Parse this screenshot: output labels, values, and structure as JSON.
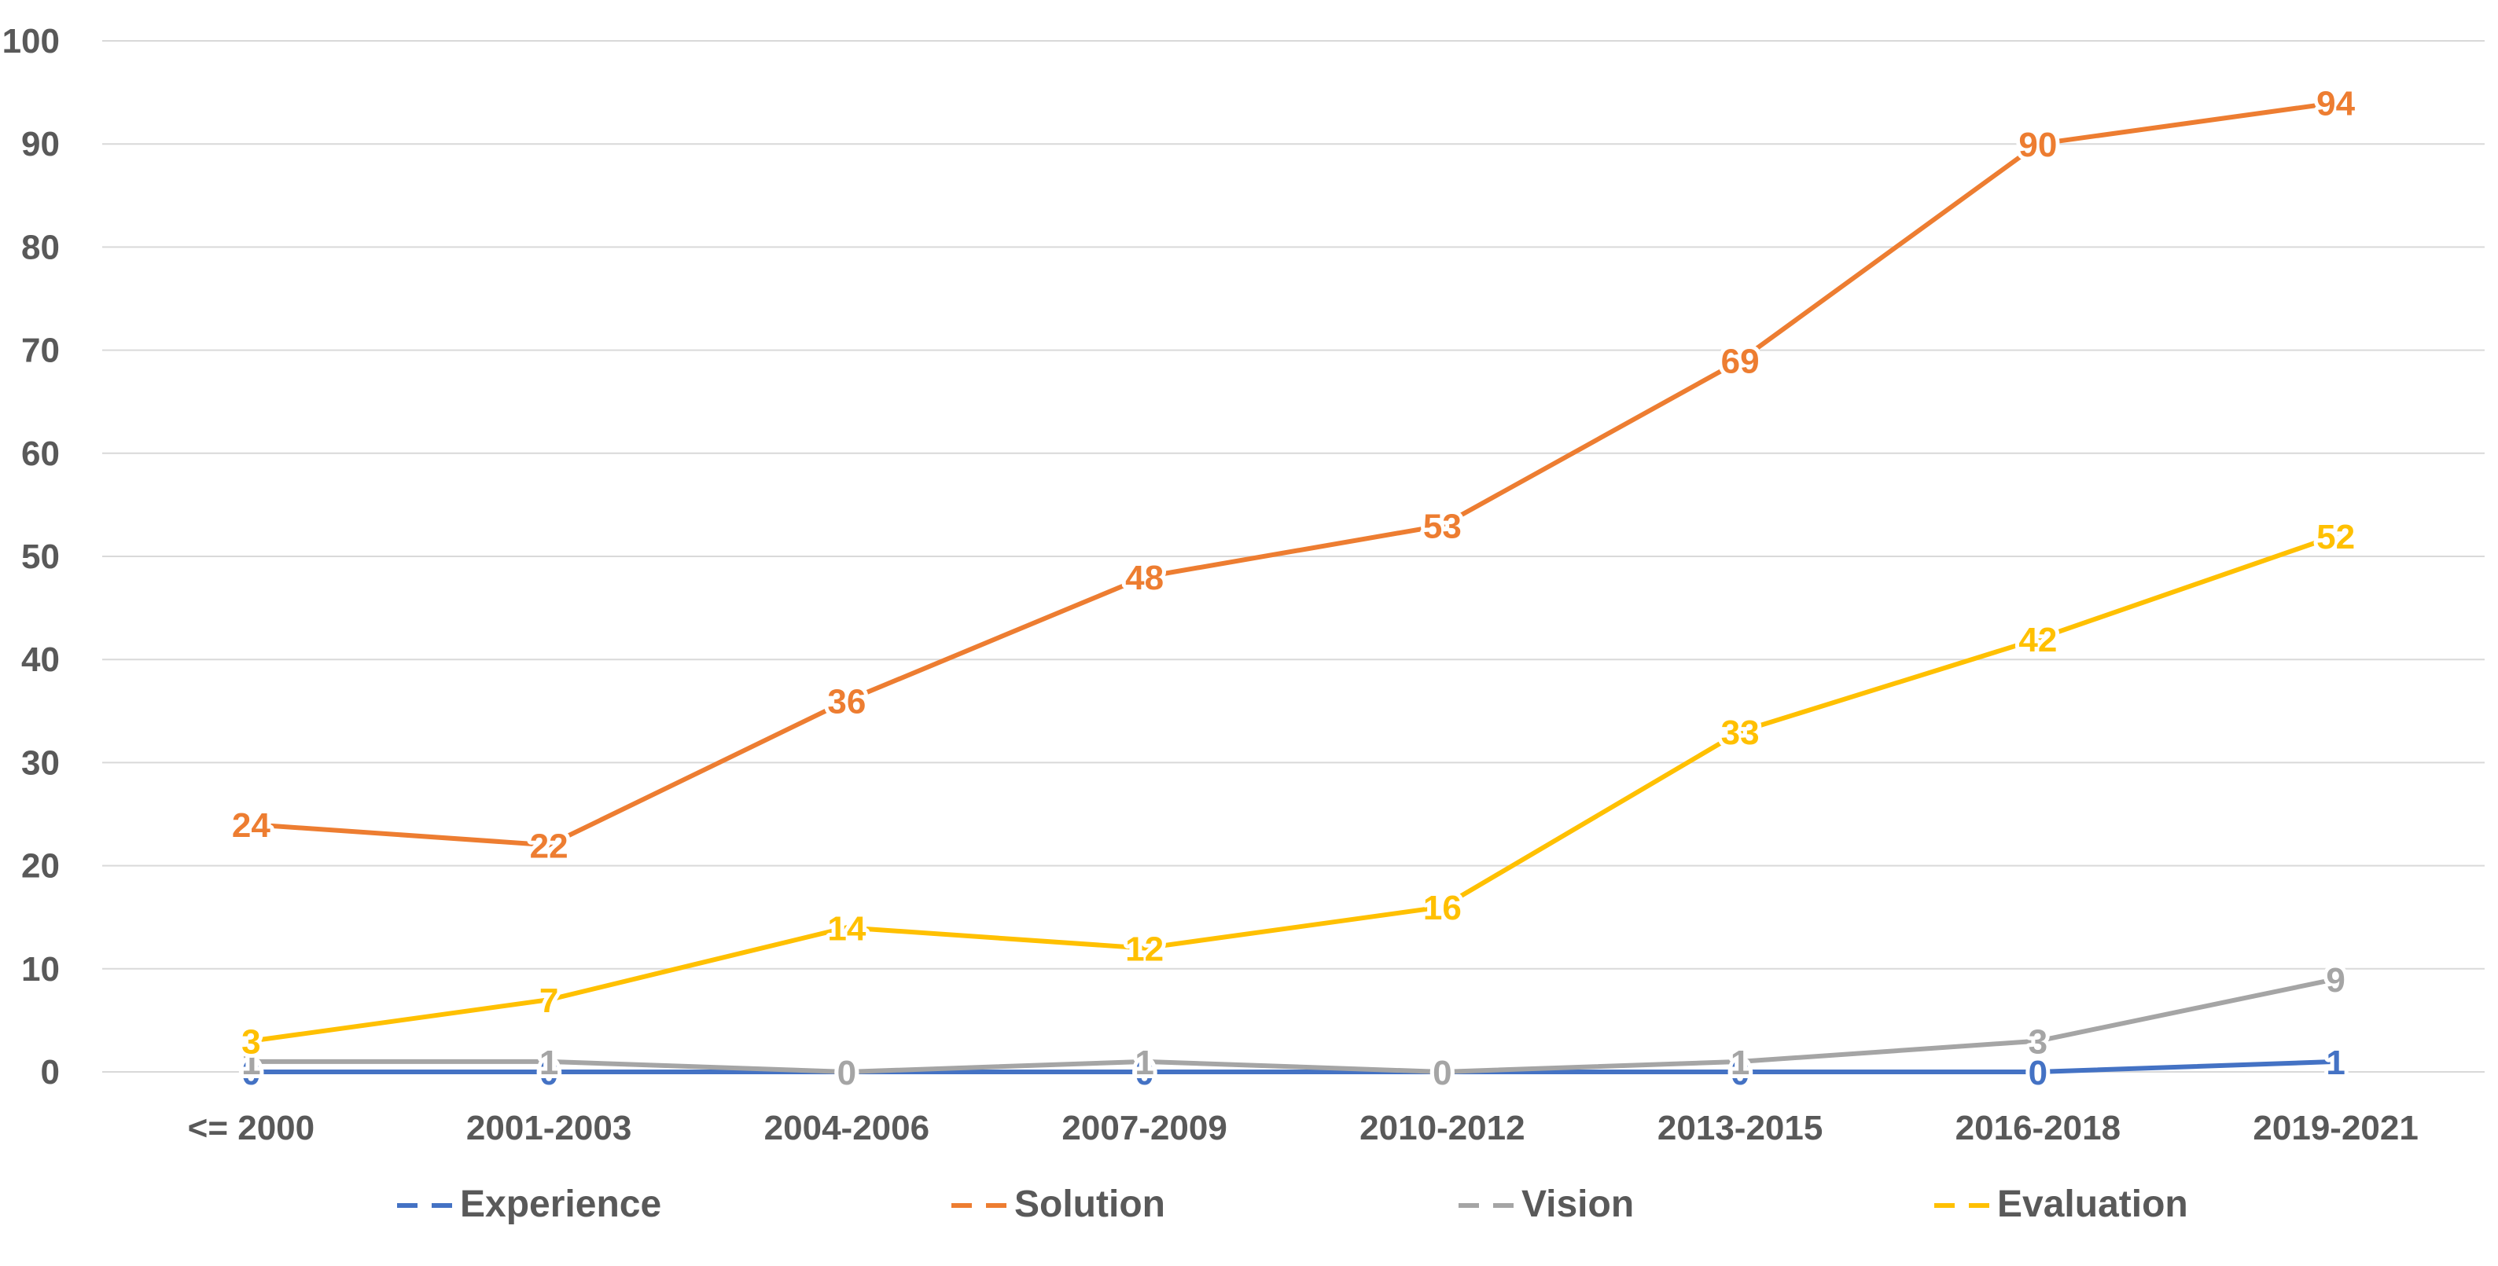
{
  "chart_data": {
    "type": "line",
    "title": "",
    "xlabel": "",
    "ylabel": "",
    "categories": [
      "<= 2000",
      "2001-2003",
      "2004-2006",
      "2007-2009",
      "2010-2012",
      "2013-2015",
      "2016-2018",
      "2019-2021"
    ],
    "ylim": [
      0,
      100
    ],
    "yticks": [
      "0",
      "10",
      "20",
      "30",
      "40",
      "50",
      "60",
      "70",
      "80",
      "90",
      "100"
    ],
    "grid": true,
    "legend_position": "bottom",
    "data_labels": true,
    "series": [
      {
        "name": "Experience",
        "color": "#4472C4",
        "values": [
          0,
          0,
          0,
          0,
          0,
          0,
          0,
          1
        ]
      },
      {
        "name": "Solution",
        "color": "#ED7D31",
        "values": [
          24,
          22,
          36,
          48,
          53,
          69,
          90,
          94
        ]
      },
      {
        "name": "Vision",
        "color": "#A5A5A5",
        "values": [
          1,
          1,
          0,
          1,
          0,
          1,
          3,
          9
        ]
      },
      {
        "name": "Evaluation",
        "color": "#FFC000",
        "values": [
          3,
          7,
          14,
          12,
          16,
          33,
          42,
          52
        ]
      }
    ]
  }
}
